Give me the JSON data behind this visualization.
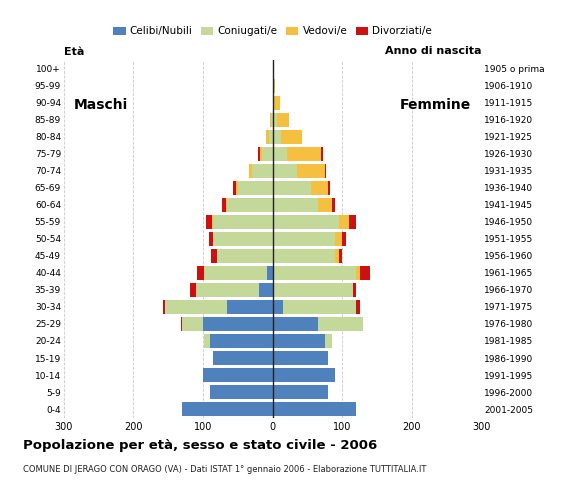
{
  "age_groups": [
    "0-4",
    "5-9",
    "10-14",
    "15-19",
    "20-24",
    "25-29",
    "30-34",
    "35-39",
    "40-44",
    "45-49",
    "50-54",
    "55-59",
    "60-64",
    "65-69",
    "70-74",
    "75-79",
    "80-84",
    "85-89",
    "90-94",
    "95-99",
    "100+"
  ],
  "birth_years": [
    "2001-2005",
    "1996-2000",
    "1991-1995",
    "1986-1990",
    "1981-1985",
    "1976-1980",
    "1971-1975",
    "1966-1970",
    "1961-1965",
    "1956-1960",
    "1951-1955",
    "1946-1950",
    "1941-1945",
    "1936-1940",
    "1931-1935",
    "1926-1930",
    "1921-1925",
    "1916-1920",
    "1911-1915",
    "1906-1910",
    "1905 o prima"
  ],
  "males": {
    "celibe": [
      130,
      90,
      100,
      85,
      90,
      100,
      65,
      20,
      8,
      0,
      0,
      0,
      0,
      0,
      0,
      0,
      0,
      0,
      0,
      0,
      0
    ],
    "coniugato": [
      0,
      0,
      0,
      0,
      8,
      30,
      90,
      90,
      90,
      80,
      85,
      85,
      65,
      50,
      30,
      15,
      5,
      2,
      0,
      0,
      0
    ],
    "vedovo": [
      0,
      0,
      0,
      0,
      0,
      0,
      0,
      0,
      0,
      0,
      0,
      2,
      2,
      2,
      4,
      3,
      4,
      2,
      0,
      0,
      0
    ],
    "divorziato": [
      0,
      0,
      0,
      0,
      0,
      2,
      2,
      8,
      10,
      8,
      6,
      8,
      5,
      5,
      0,
      3,
      0,
      0,
      0,
      0,
      0
    ]
  },
  "females": {
    "nubile": [
      120,
      80,
      90,
      80,
      75,
      65,
      15,
      0,
      0,
      0,
      0,
      0,
      0,
      0,
      0,
      0,
      0,
      0,
      0,
      0,
      0
    ],
    "coniugata": [
      0,
      0,
      0,
      0,
      10,
      65,
      105,
      115,
      120,
      90,
      90,
      95,
      65,
      55,
      35,
      20,
      12,
      6,
      2,
      0,
      0
    ],
    "vedova": [
      0,
      0,
      0,
      0,
      0,
      0,
      0,
      0,
      5,
      5,
      10,
      15,
      20,
      25,
      40,
      50,
      30,
      18,
      8,
      3,
      0
    ],
    "divorziata": [
      0,
      0,
      0,
      0,
      0,
      0,
      5,
      5,
      15,
      5,
      5,
      10,
      5,
      2,
      2,
      3,
      0,
      0,
      0,
      0,
      0
    ]
  },
  "colors": {
    "celibe": "#4f81bd",
    "coniugato": "#c4d89a",
    "vedovo": "#f5c040",
    "divorziato": "#cc1111"
  },
  "xlim": 300,
  "title": "Popolazione per età, sesso e stato civile - 2006",
  "subtitle": "COMUNE DI JERAGO CON ORAGO (VA) - Dati ISTAT 1° gennaio 2006 - Elaborazione TUTTITALIA.IT",
  "legend_labels": [
    "Celibi/Nubili",
    "Coniugati/e",
    "Vedovi/e",
    "Divorziati/e"
  ],
  "ylabel_left": "Età",
  "ylabel_right": "Anno di nascita",
  "label_maschi": "Maschi",
  "label_femmine": "Femmine"
}
